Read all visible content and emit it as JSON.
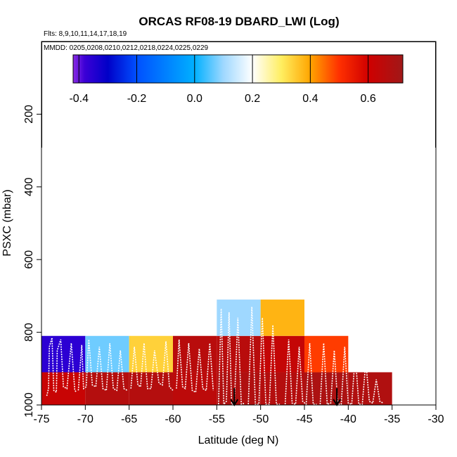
{
  "chart_data": {
    "type": "heatmap",
    "title": "ORCAS RF08-19 DBARD_LWI (Log)",
    "subtitle_flights": "Flts: 8,9,10,11,14,17,18,19",
    "subtitle_dates": "MMDD: 0205,0208,0210,0212,0218,0224,0225,0229",
    "xlabel": "Latitude (deg N)",
    "ylabel": "PSXC (mbar)",
    "xlim": [
      -75,
      -30
    ],
    "ylim": [
      1000,
      0
    ],
    "x_ticks": [
      -75,
      -70,
      -65,
      -60,
      -55,
      -50,
      -45,
      -40,
      -35,
      -30
    ],
    "x_tick_labels": [
      "-75",
      "-70",
      "-65",
      "-60",
      "-55",
      "-50",
      "-45",
      "-40",
      "-35",
      "-30"
    ],
    "y_ticks": [
      200,
      400,
      600,
      800,
      1000
    ],
    "y_tick_labels": [
      "200",
      "400",
      "600",
      "800",
      "1000"
    ],
    "colorbar": {
      "min": -0.42,
      "max": 0.72,
      "ticks": [
        -0.4,
        -0.2,
        0.0,
        0.2,
        0.4,
        0.6
      ],
      "tick_labels": [
        "-0.4",
        "-0.2",
        "0.0",
        "0.2",
        "0.4",
        "0.6"
      ],
      "stops": [
        {
          "v": -0.42,
          "c": "#8a2be2"
        },
        {
          "v": -0.38,
          "c": "#3b00d6"
        },
        {
          "v": -0.3,
          "c": "#0000c8"
        },
        {
          "v": -0.2,
          "c": "#0050ff"
        },
        {
          "v": 0.0,
          "c": "#00b0ff"
        },
        {
          "v": 0.1,
          "c": "#9fd8ff"
        },
        {
          "v": 0.2,
          "c": "#ffffff"
        },
        {
          "v": 0.3,
          "c": "#ffee60"
        },
        {
          "v": 0.4,
          "c": "#ffa500"
        },
        {
          "v": 0.5,
          "c": "#ff3000"
        },
        {
          "v": 0.6,
          "c": "#d00000"
        },
        {
          "v": 0.72,
          "c": "#a01818"
        }
      ]
    },
    "cells": [
      {
        "lat0": -75,
        "lat1": -70,
        "p0": 910,
        "p1": 1000,
        "value": 0.62
      },
      {
        "lat0": -70,
        "lat1": -65,
        "p0": 910,
        "p1": 1000,
        "value": 0.67
      },
      {
        "lat0": -65,
        "lat1": -60,
        "p0": 910,
        "p1": 1000,
        "value": 0.67
      },
      {
        "lat0": -60,
        "lat1": -55,
        "p0": 910,
        "p1": 1000,
        "value": 0.65
      },
      {
        "lat0": -55,
        "lat1": -50,
        "p0": 910,
        "p1": 1000,
        "value": 0.68
      },
      {
        "lat0": -50,
        "lat1": -45,
        "p0": 910,
        "p1": 1000,
        "value": 0.67
      },
      {
        "lat0": -45,
        "lat1": -40,
        "p0": 910,
        "p1": 1000,
        "value": 0.69
      },
      {
        "lat0": -40,
        "lat1": -35,
        "p0": 910,
        "p1": 1000,
        "value": 0.68
      },
      {
        "lat0": -75,
        "lat1": -70,
        "p0": 810,
        "p1": 910,
        "value": -0.36
      },
      {
        "lat0": -70,
        "lat1": -65,
        "p0": 810,
        "p1": 910,
        "value": 0.07
      },
      {
        "lat0": -65,
        "lat1": -60,
        "p0": 810,
        "p1": 910,
        "value": 0.34
      },
      {
        "lat0": -60,
        "lat1": -55,
        "p0": 810,
        "p1": 910,
        "value": 0.66
      },
      {
        "lat0": -55,
        "lat1": -50,
        "p0": 810,
        "p1": 910,
        "value": 0.66
      },
      {
        "lat0": -50,
        "lat1": -45,
        "p0": 810,
        "p1": 910,
        "value": 0.63
      },
      {
        "lat0": -45,
        "lat1": -40,
        "p0": 810,
        "p1": 910,
        "value": 0.49
      },
      {
        "lat0": -55,
        "lat1": -50,
        "p0": 710,
        "p1": 810,
        "value": 0.1
      },
      {
        "lat0": -50,
        "lat1": -45,
        "p0": 710,
        "p1": 810,
        "value": 0.38
      }
    ],
    "flight_tracks": [
      {
        "x": [
          -74.4,
          -74.2,
          -74.1,
          -73.8,
          -73.6,
          -73.3,
          -73.2,
          -72.8,
          -72.5,
          -72.1,
          -71.6,
          -71.2,
          -71.0
        ],
        "p": [
          975,
          955,
          840,
          815,
          960,
          965,
          850,
          820,
          950,
          955,
          830,
          960,
          965
        ]
      },
      {
        "x": [
          -70.8,
          -70.4,
          -70.2,
          -69.9,
          -69.6,
          -69.2,
          -68.8,
          -68.4,
          -68.0,
          -67.6,
          -67.2,
          -66.8,
          -66.4,
          -66.0,
          -65.6,
          -65.2
        ],
        "p": [
          960,
          835,
          955,
          950,
          820,
          945,
          950,
          840,
          955,
          960,
          830,
          955,
          960,
          850,
          955,
          960
        ]
      },
      {
        "x": [
          -64.8,
          -64.4,
          -64.0,
          -63.7,
          -63.3,
          -62.9,
          -62.5,
          -62.1,
          -61.6,
          -61.2,
          -60.8,
          -60.4,
          -60.0
        ],
        "p": [
          955,
          840,
          945,
          950,
          830,
          955,
          955,
          850,
          940,
          945,
          825,
          950,
          960
        ]
      },
      {
        "x": [
          -59.6,
          -59.3,
          -58.9,
          -58.6,
          -58.2,
          -57.8,
          -57.4,
          -57.0,
          -56.6,
          -56.2,
          -55.8,
          -55.4
        ],
        "p": [
          955,
          820,
          950,
          955,
          830,
          960,
          965,
          845,
          955,
          960,
          830,
          960
        ]
      },
      {
        "x": [
          -54.8,
          -54.5,
          -54.2,
          -53.9,
          -53.6,
          -53.3,
          -53.0,
          -52.6,
          -52.2,
          -51.8
        ],
        "p": [
          1000,
          735,
          1000,
          990,
          745,
          1000,
          1000,
          760,
          1000,
          995
        ]
      },
      {
        "x": [
          -51.4,
          -51.0,
          -50.6,
          -50.2,
          -49.8,
          -49.4,
          -49.0,
          -48.6,
          -48.2,
          -47.8
        ],
        "p": [
          1000,
          730,
          1000,
          1000,
          760,
          1000,
          1000,
          780,
          1000,
          1000
        ]
      },
      {
        "x": [
          -47.2,
          -46.8,
          -46.4,
          -46.0,
          -45.6,
          -45.2,
          -44.8,
          -44.4,
          -44.0,
          -43.6
        ],
        "p": [
          1000,
          820,
          995,
          1000,
          840,
          990,
          1000,
          830,
          1000,
          1000
        ]
      },
      {
        "x": [
          -43.2,
          -42.8,
          -42.4,
          -42.0,
          -41.6,
          -41.2,
          -40.8,
          -40.4,
          -40.0,
          -39.6,
          -39.2,
          -38.8,
          -38.4,
          -38.0,
          -37.6,
          -37.2,
          -36.8,
          -36.4,
          -36.0
        ],
        "p": [
          1000,
          830,
          1000,
          995,
          850,
          1000,
          1000,
          840,
          995,
          1000,
          860,
          1000,
          1000,
          880,
          990,
          995,
          930,
          990,
          995
        ]
      }
    ],
    "markers": [
      {
        "lat": -53.0,
        "label": "arrow-1"
      },
      {
        "lat": -41.3,
        "label": "arrow-2"
      }
    ]
  }
}
